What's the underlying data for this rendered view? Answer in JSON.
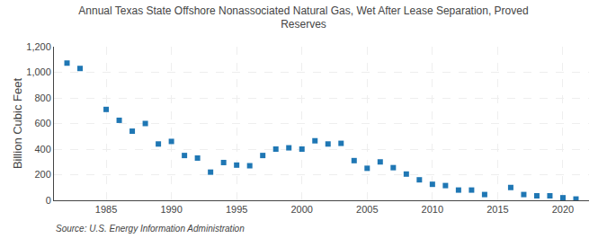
{
  "chart_data": {
    "type": "scatter",
    "title": "Annual Texas State Offshore Nonassociated Natural Gas, Wet After Lease Separation, Proved\nReserves",
    "ylabel": "Billion Cubic Feet",
    "annotations": [
      "Source: U.S. Energy Information Administration"
    ],
    "marker": "square",
    "x": [
      1982,
      1983,
      1985,
      1986,
      1987,
      1988,
      1989,
      1990,
      1991,
      1992,
      1993,
      1994,
      1995,
      1996,
      1997,
      1998,
      1999,
      2000,
      2001,
      2002,
      2003,
      2004,
      2005,
      2006,
      2007,
      2008,
      2009,
      2010,
      2011,
      2012,
      2013,
      2014,
      2016,
      2017,
      2018,
      2019,
      2020,
      2021
    ],
    "values": [
      1072,
      1030,
      710,
      625,
      540,
      600,
      440,
      460,
      350,
      330,
      220,
      295,
      275,
      270,
      350,
      400,
      410,
      400,
      465,
      440,
      445,
      310,
      250,
      300,
      255,
      205,
      160,
      125,
      115,
      80,
      80,
      45,
      100,
      45,
      35,
      35,
      20,
      10
    ],
    "xlim": [
      1981,
      2022
    ],
    "xticks": [
      1985,
      1990,
      1995,
      2000,
      2005,
      2010,
      2015,
      2020
    ],
    "ylim": [
      0,
      1200
    ],
    "yticks": [
      0,
      200,
      400,
      600,
      800,
      {
        "value": 1000,
        "label": "1,000"
      },
      {
        "value": 1200,
        "label": "1,200"
      }
    ],
    "grid": true
  }
}
